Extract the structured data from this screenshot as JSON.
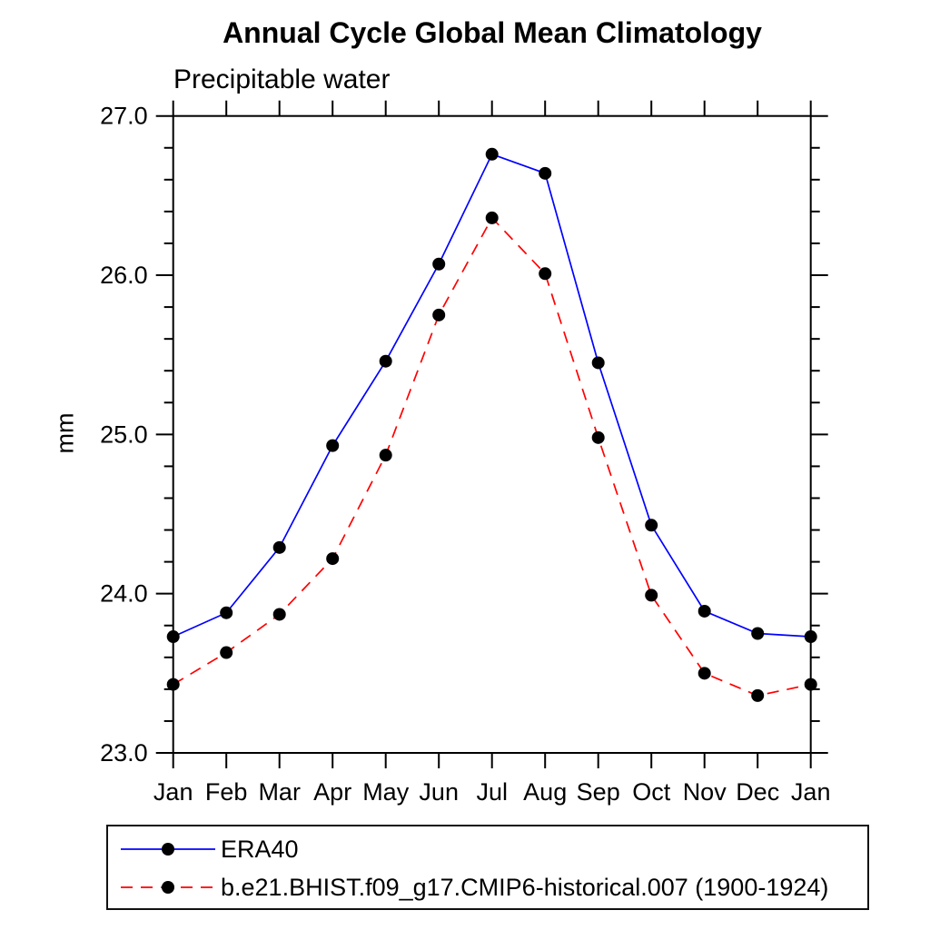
{
  "page": {
    "background": "#ffffff",
    "axis_color": "#000000",
    "text_color": "#000000"
  },
  "chart_data": {
    "type": "line",
    "title": "Annual Cycle Global Mean Climatology",
    "subtitle": "Precipitable water",
    "ylabel": "mm",
    "x_categories": [
      "Jan",
      "Feb",
      "Mar",
      "Apr",
      "May",
      "Jun",
      "Jul",
      "Aug",
      "Sep",
      "Oct",
      "Nov",
      "Dec",
      "Jan"
    ],
    "ylim": [
      23.0,
      27.0
    ],
    "y_major_ticks": [
      23.0,
      24.0,
      25.0,
      26.0,
      27.0
    ],
    "y_major_tick_labels": [
      "23.0",
      "24.0",
      "25.0",
      "26.0",
      "27.0"
    ],
    "y_minor_tick_step": 0.2,
    "grid": false,
    "legend_position": "bottom-left",
    "series": [
      {
        "name": "ERA40",
        "color": "#0000ff",
        "line_style": "solid",
        "marker": "filled-circle",
        "marker_color": "#000000",
        "values": [
          23.73,
          23.88,
          24.29,
          24.93,
          25.46,
          26.07,
          26.76,
          26.64,
          25.45,
          24.43,
          23.89,
          23.75,
          23.73
        ]
      },
      {
        "name": "b.e21.BHIST.f09_g17.CMIP6-historical.007 (1900-1924)",
        "color": "#ff0000",
        "line_style": "dashed",
        "marker": "filled-circle",
        "marker_color": "#000000",
        "values": [
          23.43,
          23.63,
          23.87,
          24.22,
          24.87,
          25.75,
          26.36,
          26.01,
          24.98,
          23.99,
          23.5,
          23.36,
          23.43
        ]
      }
    ]
  }
}
